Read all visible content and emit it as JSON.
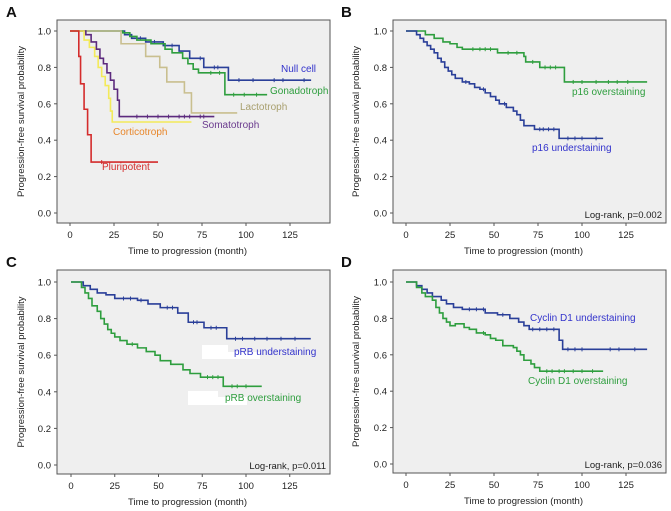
{
  "figure": {
    "panels": [
      "A",
      "B",
      "C",
      "D"
    ]
  },
  "chart_data": [
    {
      "panel": "A",
      "type": "line",
      "style": "step (Kaplan-Meier)",
      "xlabel": "Time to progression (month)",
      "ylabel": "Progression-free survival probability",
      "xlim": [
        0,
        140
      ],
      "ylim": [
        0,
        1.0
      ],
      "xticks": [
        "0",
        "25",
        "50",
        "75",
        "100",
        "125"
      ],
      "yticks": [
        "0.0",
        "0.2",
        "0.4",
        "0.6",
        "0.8",
        "1.0"
      ],
      "grid": false,
      "annotation": "",
      "series": [
        {
          "name": "Null cell",
          "color": "#2a3f99",
          "label_color": "#3333cc",
          "steps": [
            [
              0,
              1.0
            ],
            [
              31,
              0.98
            ],
            [
              35,
              0.96
            ],
            [
              43,
              0.94
            ],
            [
              53,
              0.92
            ],
            [
              62,
              0.89
            ],
            [
              68,
              0.85
            ],
            [
              76,
              0.8
            ],
            [
              90,
              0.73
            ]
          ],
          "end": 137,
          "censors": [
            40,
            48,
            58,
            74,
            82,
            84,
            96,
            104,
            116,
            121,
            133
          ]
        },
        {
          "name": "Gonadotroph",
          "color": "#2e9e3e",
          "label_color": "#2e9e3e",
          "steps": [
            [
              0,
              1.0
            ],
            [
              30,
              0.99
            ],
            [
              34,
              0.97
            ],
            [
              38,
              0.95
            ],
            [
              46,
              0.93
            ],
            [
              54,
              0.9
            ],
            [
              58,
              0.88
            ],
            [
              64,
              0.85
            ],
            [
              67,
              0.82
            ],
            [
              70,
              0.79
            ],
            [
              73,
              0.77
            ],
            [
              88,
              0.65
            ]
          ],
          "end": 112,
          "censors": [
            80,
            85,
            93,
            99,
            106
          ]
        },
        {
          "name": "Lactotroph",
          "color": "#c9bf8f",
          "label_color": "#a89f6e",
          "steps": [
            [
              0,
              1.0
            ],
            [
              29,
              0.93
            ],
            [
              43,
              0.86
            ],
            [
              51,
              0.8
            ],
            [
              55,
              0.72
            ],
            [
              65,
              0.66
            ],
            [
              69,
              0.55
            ]
          ],
          "end": 95,
          "censors": []
        },
        {
          "name": "Somatotroph",
          "color": "#5c2a7e",
          "label_color": "#6a3a8e",
          "steps": [
            [
              0,
              1.0
            ],
            [
              9,
              0.98
            ],
            [
              12,
              0.94
            ],
            [
              15,
              0.9
            ],
            [
              17,
              0.85
            ],
            [
              19,
              0.82
            ],
            [
              21,
              0.77
            ],
            [
              23,
              0.73
            ],
            [
              25,
              0.68
            ],
            [
              27,
              0.62
            ],
            [
              28,
              0.53
            ]
          ],
          "end": 82,
          "censors": [
            38,
            44,
            50,
            56,
            62,
            65,
            68,
            74,
            76
          ]
        },
        {
          "name": "Corticotroph",
          "color": "#f3ea5a",
          "label_color": "#e8862a",
          "steps": [
            [
              0,
              1.0
            ],
            [
              8,
              0.95
            ],
            [
              11,
              0.91
            ],
            [
              14,
              0.86
            ],
            [
              16,
              0.8
            ],
            [
              18,
              0.75
            ],
            [
              20,
              0.7
            ],
            [
              22,
              0.63
            ],
            [
              23,
              0.56
            ],
            [
              24,
              0.5
            ]
          ],
          "end": 69,
          "censors": []
        },
        {
          "name": "Pluripotent",
          "color": "#d42c2c",
          "label_color": "#d42c2c",
          "steps": [
            [
              0,
              1.0
            ],
            [
              5,
              0.86
            ],
            [
              6,
              0.71
            ],
            [
              8,
              0.57
            ],
            [
              10,
              0.43
            ],
            [
              12,
              0.28
            ]
          ],
          "end": 50,
          "censors": [
            18
          ]
        }
      ]
    },
    {
      "panel": "B",
      "type": "line",
      "style": "step (Kaplan-Meier)",
      "xlabel": "Time to progression (month)",
      "ylabel": "Progression-free survival probability",
      "xlim": [
        0,
        140
      ],
      "ylim": [
        0,
        1.0
      ],
      "xticks": [
        "0",
        "25",
        "50",
        "75",
        "100",
        "125"
      ],
      "yticks": [
        "0.0",
        "0.2",
        "0.4",
        "0.6",
        "0.8",
        "1.0"
      ],
      "grid": false,
      "annotation": "Log-rank, p=0.002",
      "series": [
        {
          "name": "p16 overstaining",
          "color": "#2e9e3e",
          "label_color": "#2e9e3e",
          "steps": [
            [
              0,
              1.0
            ],
            [
              11,
              0.98
            ],
            [
              16,
              0.96
            ],
            [
              21,
              0.94
            ],
            [
              25,
              0.93
            ],
            [
              29,
              0.91
            ],
            [
              32,
              0.9
            ],
            [
              52,
              0.88
            ],
            [
              67,
              0.86
            ],
            [
              68,
              0.83
            ],
            [
              76,
              0.8
            ],
            [
              90,
              0.72
            ]
          ],
          "end": 137,
          "censors": [
            38,
            42,
            45,
            48,
            58,
            63,
            72,
            79,
            82,
            85,
            95,
            100,
            108,
            115,
            120,
            126
          ]
        },
        {
          "name": "p16 understaining",
          "color": "#2a3f99",
          "label_color": "#3333cc",
          "steps": [
            [
              0,
              1.0
            ],
            [
              6,
              0.98
            ],
            [
              8,
              0.96
            ],
            [
              10,
              0.94
            ],
            [
              12,
              0.92
            ],
            [
              14,
              0.9
            ],
            [
              16,
              0.88
            ],
            [
              18,
              0.85
            ],
            [
              20,
              0.83
            ],
            [
              22,
              0.8
            ],
            [
              24,
              0.78
            ],
            [
              26,
              0.76
            ],
            [
              28,
              0.74
            ],
            [
              32,
              0.72
            ],
            [
              36,
              0.71
            ],
            [
              39,
              0.69
            ],
            [
              42,
              0.68
            ],
            [
              45,
              0.66
            ],
            [
              48,
              0.64
            ],
            [
              51,
              0.62
            ],
            [
              53,
              0.6
            ],
            [
              57,
              0.58
            ],
            [
              61,
              0.56
            ],
            [
              63,
              0.54
            ],
            [
              65,
              0.51
            ],
            [
              67,
              0.48
            ],
            [
              73,
              0.46
            ],
            [
              87,
              0.41
            ]
          ],
          "end": 112,
          "censors": [
            34,
            44,
            56,
            76,
            78,
            81,
            84,
            92,
            96,
            100,
            108
          ]
        }
      ]
    },
    {
      "panel": "C",
      "type": "line",
      "style": "step (Kaplan-Meier)",
      "xlabel": "Time to progression (month)",
      "ylabel": "Progression-free survival probability",
      "xlim": [
        0,
        140
      ],
      "ylim": [
        0,
        1.0
      ],
      "xticks": [
        "0",
        "25",
        "50",
        "75",
        "100",
        "125"
      ],
      "yticks": [
        "0.0",
        "0.2",
        "0.4",
        "0.6",
        "0.8",
        "1.0"
      ],
      "grid": false,
      "annotation": "Log-rank, p=0.011",
      "series": [
        {
          "name": "pRB understaining",
          "color": "#2a3f99",
          "label_color": "#3333cc",
          "steps": [
            [
              0,
              1.0
            ],
            [
              7,
              0.98
            ],
            [
              11,
              0.96
            ],
            [
              15,
              0.94
            ],
            [
              20,
              0.93
            ],
            [
              25,
              0.91
            ],
            [
              38,
              0.9
            ],
            [
              44,
              0.88
            ],
            [
              51,
              0.86
            ],
            [
              61,
              0.83
            ],
            [
              67,
              0.78
            ],
            [
              76,
              0.75
            ],
            [
              89,
              0.69
            ]
          ],
          "end": 137,
          "censors": [
            30,
            34,
            40,
            55,
            58,
            70,
            72,
            80,
            83,
            94,
            98,
            105,
            112,
            120,
            128
          ]
        },
        {
          "name": "pRB overstaining",
          "color": "#2e9e3e",
          "label_color": "#2e9e3e",
          "steps": [
            [
              0,
              1.0
            ],
            [
              6,
              0.97
            ],
            [
              8,
              0.94
            ],
            [
              10,
              0.91
            ],
            [
              12,
              0.87
            ],
            [
              15,
              0.84
            ],
            [
              17,
              0.8
            ],
            [
              19,
              0.77
            ],
            [
              21,
              0.74
            ],
            [
              23,
              0.72
            ],
            [
              25,
              0.7
            ],
            [
              28,
              0.68
            ],
            [
              32,
              0.66
            ],
            [
              38,
              0.64
            ],
            [
              43,
              0.62
            ],
            [
              48,
              0.6
            ],
            [
              51,
              0.57
            ],
            [
              57,
              0.55
            ],
            [
              64,
              0.52
            ],
            [
              68,
              0.5
            ],
            [
              74,
              0.48
            ],
            [
              87,
              0.43
            ]
          ],
          "end": 109,
          "censors": [
            35,
            78,
            81,
            84,
            92,
            95,
            100
          ]
        }
      ]
    },
    {
      "panel": "D",
      "type": "line",
      "style": "step (Kaplan-Meier)",
      "xlabel": "Time to progression (month)",
      "ylabel": "Progression-free survival probability",
      "xlim": [
        0,
        140
      ],
      "ylim": [
        0,
        1.0
      ],
      "xticks": [
        "0",
        "25",
        "50",
        "75",
        "100",
        "125"
      ],
      "yticks": [
        "0.0",
        "0.2",
        "0.4",
        "0.6",
        "0.8",
        "1.0"
      ],
      "grid": false,
      "annotation": "Log-rank, p=0.036",
      "series": [
        {
          "name": "Cyclin D1 understaining",
          "color": "#2a3f99",
          "label_color": "#3333cc",
          "steps": [
            [
              0,
              1.0
            ],
            [
              6,
              0.98
            ],
            [
              9,
              0.96
            ],
            [
              12,
              0.94
            ],
            [
              15,
              0.92
            ],
            [
              20,
              0.9
            ],
            [
              23,
              0.88
            ],
            [
              27,
              0.86
            ],
            [
              32,
              0.85
            ],
            [
              45,
              0.83
            ],
            [
              52,
              0.82
            ],
            [
              59,
              0.8
            ],
            [
              64,
              0.78
            ],
            [
              67,
              0.76
            ],
            [
              70,
              0.74
            ],
            [
              87,
              0.68
            ],
            [
              89,
              0.63
            ]
          ],
          "end": 137,
          "censors": [
            36,
            40,
            44,
            55,
            72,
            76,
            80,
            84,
            92,
            96,
            100,
            116,
            121,
            130
          ]
        },
        {
          "name": "Cyclin D1 overstaining",
          "color": "#2e9e3e",
          "label_color": "#2e9e3e",
          "steps": [
            [
              0,
              1.0
            ],
            [
              6,
              0.97
            ],
            [
              9,
              0.94
            ],
            [
              11,
              0.92
            ],
            [
              15,
              0.9
            ],
            [
              17,
              0.86
            ],
            [
              19,
              0.83
            ],
            [
              21,
              0.8
            ],
            [
              23,
              0.78
            ],
            [
              25,
              0.76
            ],
            [
              28,
              0.77
            ],
            [
              33,
              0.75
            ],
            [
              36,
              0.74
            ],
            [
              40,
              0.72
            ],
            [
              45,
              0.71
            ],
            [
              48,
              0.69
            ],
            [
              51,
              0.68
            ],
            [
              55,
              0.65
            ],
            [
              61,
              0.64
            ],
            [
              63,
              0.62
            ],
            [
              65,
              0.6
            ],
            [
              67,
              0.57
            ],
            [
              71,
              0.55
            ],
            [
              73,
              0.53
            ],
            [
              76,
              0.51
            ]
          ],
          "end": 112,
          "censors": [
            44,
            80,
            83,
            87,
            90,
            95,
            100,
            106
          ]
        }
      ]
    }
  ]
}
